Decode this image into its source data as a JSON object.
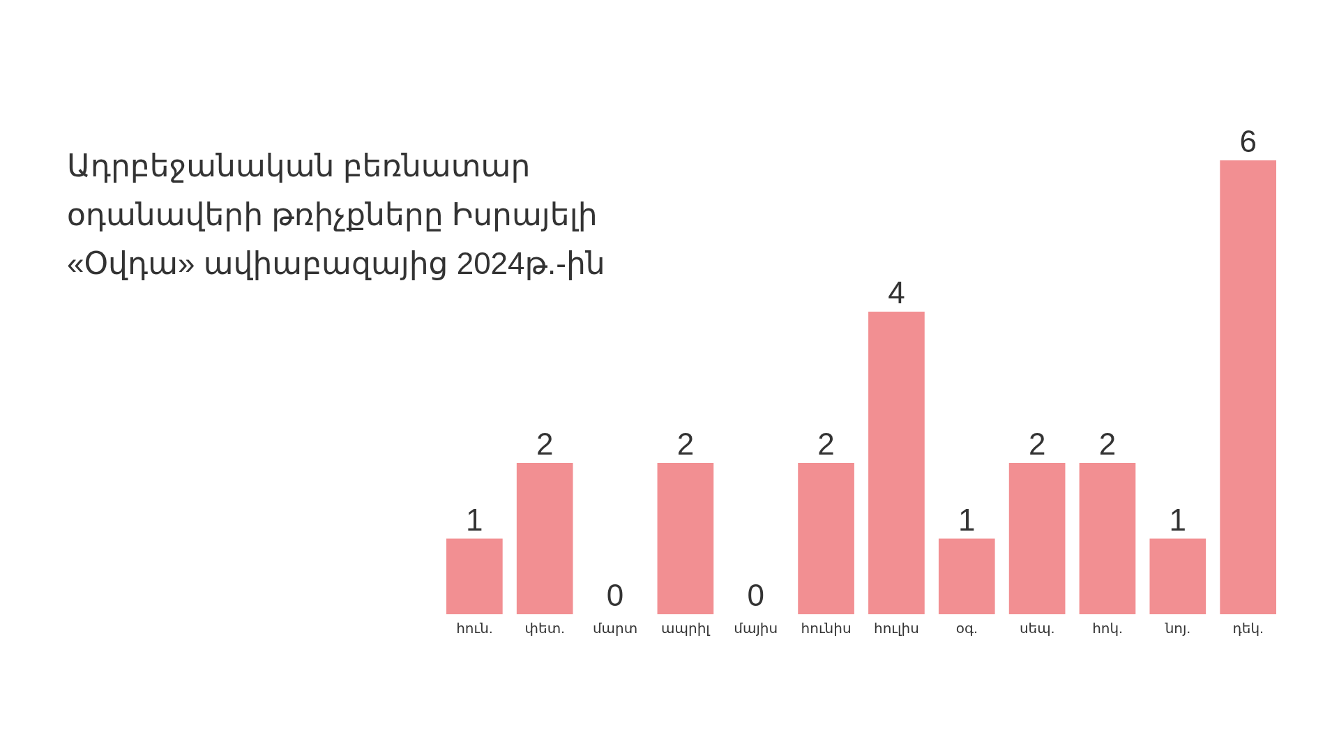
{
  "chart_data": {
    "type": "bar",
    "title": "Ադրբեջանական բեռնատար օդանավերի թռիչքները Իսրայելի «Օվդա» ավիաբազայից 2024թ.-ին",
    "categories": [
      "հուն.",
      "փետ.",
      "մարտ",
      "ապրիլ",
      "մայիս",
      "հունիս",
      "հուլիս",
      "օգ.",
      "սեպ.",
      "հոկ.",
      "նոյ.",
      "դեկ."
    ],
    "values": [
      1,
      2,
      0,
      2,
      0,
      2,
      4,
      1,
      2,
      2,
      1,
      6
    ],
    "color": "#f28f92",
    "data_labels": true
  }
}
